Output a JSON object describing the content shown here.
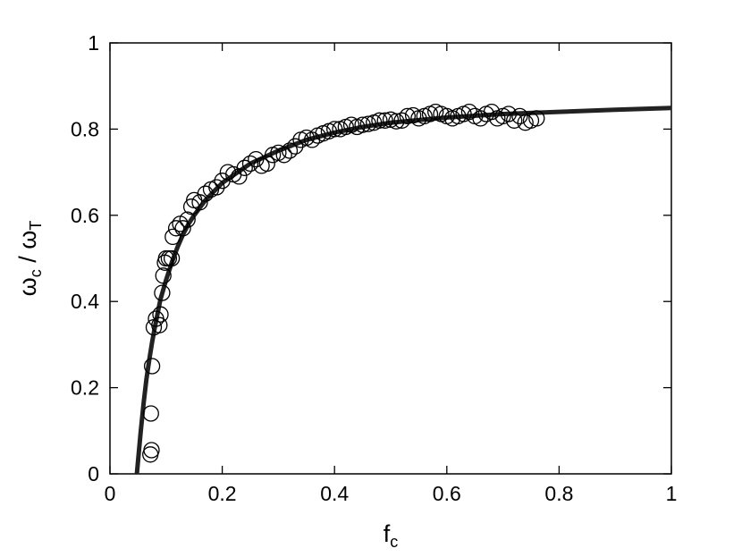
{
  "chart_data": {
    "type": "scatter",
    "xlabel": {
      "main": "f",
      "sub": "c"
    },
    "ylabel": {
      "num": "ω",
      "num_sub": "c",
      "slash": " / ",
      "den": "ω",
      "den_sub": "T"
    },
    "xlim": [
      0,
      1
    ],
    "ylim": [
      0,
      1
    ],
    "xticks": [
      0,
      0.2,
      0.4,
      0.6,
      0.8,
      1
    ],
    "yticks": [
      0,
      0.2,
      0.4,
      0.6,
      0.8,
      1
    ],
    "xtick_labels": [
      "0",
      "0.2",
      "0.4",
      "0.6",
      "0.8",
      "1"
    ],
    "ytick_labels": [
      "0",
      "0.2",
      "0.4",
      "0.6",
      "0.8",
      "1"
    ],
    "grid": false,
    "colors": {
      "marker": "#000000",
      "fit": "#222222"
    },
    "series": [
      {
        "kind": "markers",
        "marker": "open-circle",
        "points": [
          [
            0.072,
            0.045
          ],
          [
            0.074,
            0.055
          ],
          [
            0.073,
            0.14
          ],
          [
            0.075,
            0.25
          ],
          [
            0.078,
            0.34
          ],
          [
            0.082,
            0.36
          ],
          [
            0.088,
            0.345
          ],
          [
            0.09,
            0.37
          ],
          [
            0.093,
            0.42
          ],
          [
            0.095,
            0.46
          ],
          [
            0.098,
            0.49
          ],
          [
            0.1,
            0.5
          ],
          [
            0.105,
            0.5
          ],
          [
            0.11,
            0.5
          ],
          [
            0.112,
            0.55
          ],
          [
            0.118,
            0.57
          ],
          [
            0.125,
            0.58
          ],
          [
            0.13,
            0.57
          ],
          [
            0.138,
            0.59
          ],
          [
            0.145,
            0.62
          ],
          [
            0.15,
            0.635
          ],
          [
            0.16,
            0.63
          ],
          [
            0.17,
            0.65
          ],
          [
            0.18,
            0.66
          ],
          [
            0.19,
            0.665
          ],
          [
            0.2,
            0.68
          ],
          [
            0.21,
            0.7
          ],
          [
            0.22,
            0.695
          ],
          [
            0.23,
            0.69
          ],
          [
            0.24,
            0.71
          ],
          [
            0.25,
            0.72
          ],
          [
            0.26,
            0.73
          ],
          [
            0.27,
            0.715
          ],
          [
            0.28,
            0.72
          ],
          [
            0.29,
            0.74
          ],
          [
            0.3,
            0.745
          ],
          [
            0.31,
            0.74
          ],
          [
            0.32,
            0.75
          ],
          [
            0.33,
            0.76
          ],
          [
            0.34,
            0.775
          ],
          [
            0.35,
            0.78
          ],
          [
            0.36,
            0.775
          ],
          [
            0.37,
            0.785
          ],
          [
            0.38,
            0.79
          ],
          [
            0.39,
            0.795
          ],
          [
            0.4,
            0.8
          ],
          [
            0.41,
            0.8
          ],
          [
            0.42,
            0.805
          ],
          [
            0.43,
            0.81
          ],
          [
            0.44,
            0.805
          ],
          [
            0.45,
            0.81
          ],
          [
            0.46,
            0.812
          ],
          [
            0.47,
            0.815
          ],
          [
            0.48,
            0.82
          ],
          [
            0.49,
            0.82
          ],
          [
            0.5,
            0.822
          ],
          [
            0.51,
            0.818
          ],
          [
            0.52,
            0.82
          ],
          [
            0.53,
            0.83
          ],
          [
            0.54,
            0.832
          ],
          [
            0.55,
            0.825
          ],
          [
            0.56,
            0.83
          ],
          [
            0.57,
            0.835
          ],
          [
            0.58,
            0.84
          ],
          [
            0.59,
            0.835
          ],
          [
            0.6,
            0.83
          ],
          [
            0.61,
            0.825
          ],
          [
            0.62,
            0.83
          ],
          [
            0.63,
            0.835
          ],
          [
            0.64,
            0.84
          ],
          [
            0.65,
            0.83
          ],
          [
            0.66,
            0.825
          ],
          [
            0.67,
            0.835
          ],
          [
            0.68,
            0.84
          ],
          [
            0.69,
            0.825
          ],
          [
            0.7,
            0.83
          ],
          [
            0.71,
            0.835
          ],
          [
            0.72,
            0.82
          ],
          [
            0.73,
            0.83
          ],
          [
            0.74,
            0.815
          ],
          [
            0.75,
            0.82
          ],
          [
            0.76,
            0.825
          ]
        ]
      },
      {
        "kind": "line",
        "points": [
          [
            0.048,
            0.0
          ],
          [
            0.05,
            0.03
          ],
          [
            0.055,
            0.1
          ],
          [
            0.06,
            0.165
          ],
          [
            0.065,
            0.22
          ],
          [
            0.07,
            0.265
          ],
          [
            0.075,
            0.305
          ],
          [
            0.08,
            0.34
          ],
          [
            0.09,
            0.405
          ],
          [
            0.1,
            0.45
          ],
          [
            0.11,
            0.49
          ],
          [
            0.12,
            0.525
          ],
          [
            0.13,
            0.555
          ],
          [
            0.14,
            0.58
          ],
          [
            0.15,
            0.6
          ],
          [
            0.17,
            0.635
          ],
          [
            0.2,
            0.675
          ],
          [
            0.25,
            0.72
          ],
          [
            0.3,
            0.75
          ],
          [
            0.35,
            0.775
          ],
          [
            0.4,
            0.792
          ],
          [
            0.45,
            0.805
          ],
          [
            0.5,
            0.815
          ],
          [
            0.6,
            0.827
          ],
          [
            0.7,
            0.835
          ],
          [
            0.8,
            0.84
          ],
          [
            0.9,
            0.845
          ],
          [
            1.0,
            0.849
          ]
        ]
      }
    ]
  }
}
